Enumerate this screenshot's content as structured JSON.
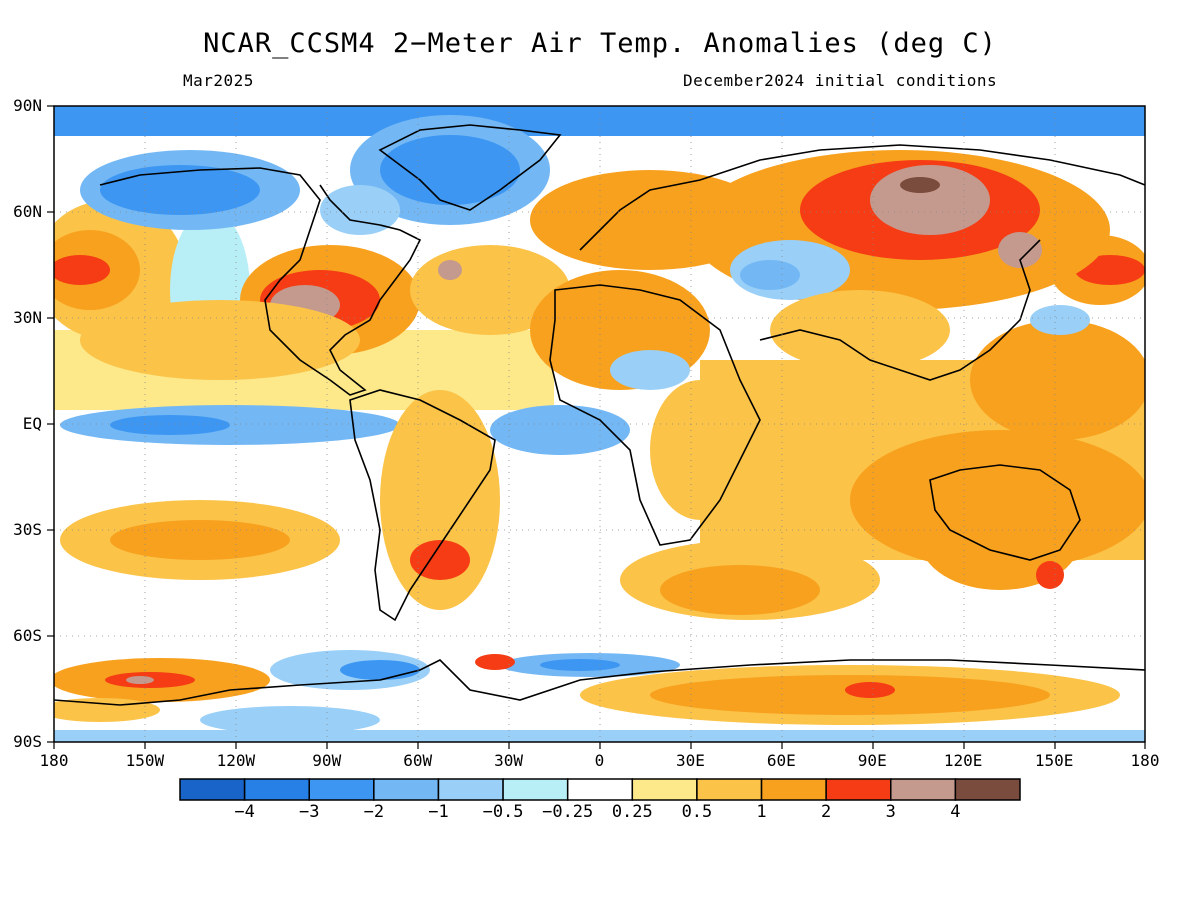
{
  "title": "NCAR_CCSM4 2−Meter Air Temp. Anomalies (deg C)",
  "subtitle_left": "Mar2025",
  "subtitle_right": "December2024 initial conditions",
  "map": {
    "projection": "equirectangular",
    "lon_range": [
      -180,
      180
    ],
    "lat_range": [
      -90,
      90
    ],
    "grid": "dotted",
    "lat_labels": [
      "90N",
      "60N",
      "30N",
      "EQ",
      "30S",
      "60S",
      "90S"
    ],
    "lon_labels": [
      "180",
      "150W",
      "120W",
      "90W",
      "60W",
      "30W",
      "0",
      "30E",
      "60E",
      "90E",
      "120E",
      "150E",
      "180"
    ],
    "land_color": "none",
    "coastline_color": "#000000"
  },
  "colorbar": {
    "colors": [
      "#1964c8",
      "#2680e6",
      "#3d97f2",
      "#73b8f5",
      "#9ad0f8",
      "#b8eef6",
      "#ffffff",
      "#fde88a",
      "#fbc348",
      "#f8a11e",
      "#f53c14",
      "#c49a8e",
      "#7a4c3e"
    ],
    "labels": [
      "−4",
      "−3",
      "−2",
      "−1",
      "−0.5",
      "−0.25",
      "0.25",
      "0.5",
      "1",
      "2",
      "3",
      "4"
    ]
  }
}
